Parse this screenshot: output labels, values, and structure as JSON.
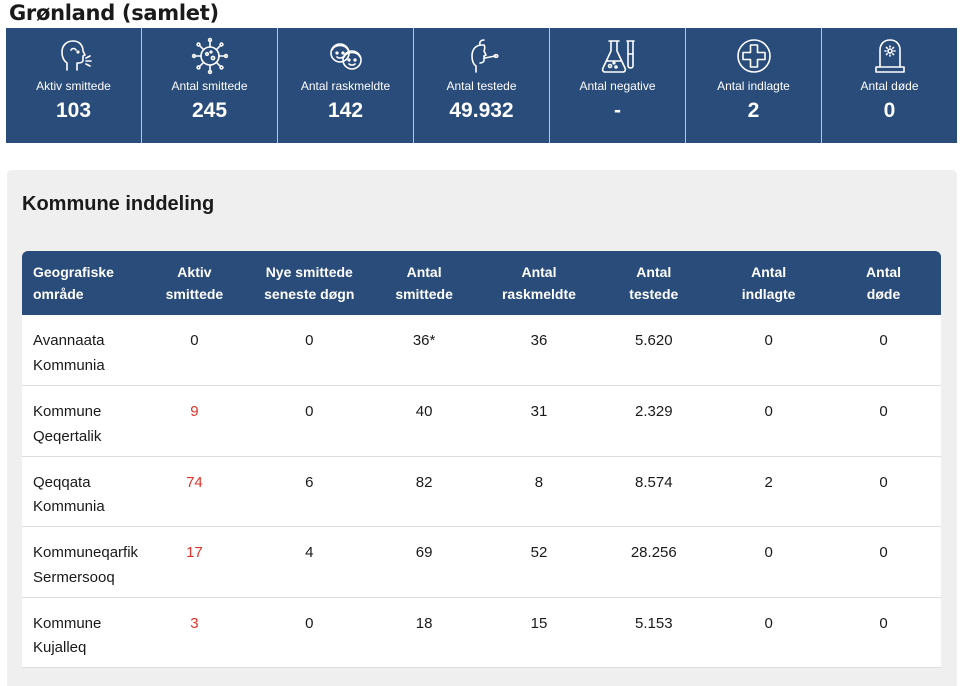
{
  "page": {
    "title": "Grønland (samlet)"
  },
  "stats": [
    {
      "icon": "coughing-person-icon",
      "label": "Aktiv smittede",
      "value": "103"
    },
    {
      "icon": "virus-icon",
      "label": "Antal smittede",
      "value": "245"
    },
    {
      "icon": "recovered-people-icon",
      "label": "Antal raskmeldte",
      "value": "142"
    },
    {
      "icon": "swab-test-icon",
      "label": "Antal testede",
      "value": "49.932"
    },
    {
      "icon": "lab-flask-icon",
      "label": "Antal negative",
      "value": "-"
    },
    {
      "icon": "hospital-cross-icon",
      "label": "Antal indlagte",
      "value": "2"
    },
    {
      "icon": "gravestone-icon",
      "label": "Antal døde",
      "value": "0"
    }
  ],
  "section": {
    "title": "Kommune inddeling",
    "columns": [
      [
        "Geografiske",
        "område"
      ],
      [
        "Aktiv",
        "smittede"
      ],
      [
        "Nye smittede",
        "seneste døgn"
      ],
      [
        "Antal",
        "smittede"
      ],
      [
        "Antal",
        "raskmeldte"
      ],
      [
        "Antal",
        "testede"
      ],
      [
        "Antal",
        "indlagte"
      ],
      [
        "Antal",
        "døde"
      ]
    ],
    "rows": [
      {
        "area": [
          "Avannaata",
          "Kommunia"
        ],
        "active": "0",
        "new": "0",
        "infected": "36*",
        "recovered": "36",
        "tested": "5.620",
        "hospitalized": "0",
        "deaths": "0"
      },
      {
        "area": [
          "Kommune",
          "Qeqertalik"
        ],
        "active": "9",
        "new": "0",
        "infected": "40",
        "recovered": "31",
        "tested": "2.329",
        "hospitalized": "0",
        "deaths": "0"
      },
      {
        "area": [
          "Qeqqata",
          "Kommunia"
        ],
        "active": "74",
        "new": "6",
        "infected": "82",
        "recovered": "8",
        "tested": "8.574",
        "hospitalized": "2",
        "deaths": "0"
      },
      {
        "area": [
          "Kommuneqarfik",
          "Sermersooq"
        ],
        "active": "17",
        "new": "4",
        "infected": "69",
        "recovered": "52",
        "tested": "28.256",
        "hospitalized": "0",
        "deaths": "0"
      },
      {
        "area": [
          "Kommune",
          "Kujalleq"
        ],
        "active": "3",
        "new": "0",
        "infected": "18",
        "recovered": "15",
        "tested": "5.153",
        "hospitalized": "0",
        "deaths": "0"
      }
    ]
  },
  "colors": {
    "header_bg": "#294c7b",
    "active_highlight": "#e0322a",
    "panel_bg": "#efefef"
  }
}
